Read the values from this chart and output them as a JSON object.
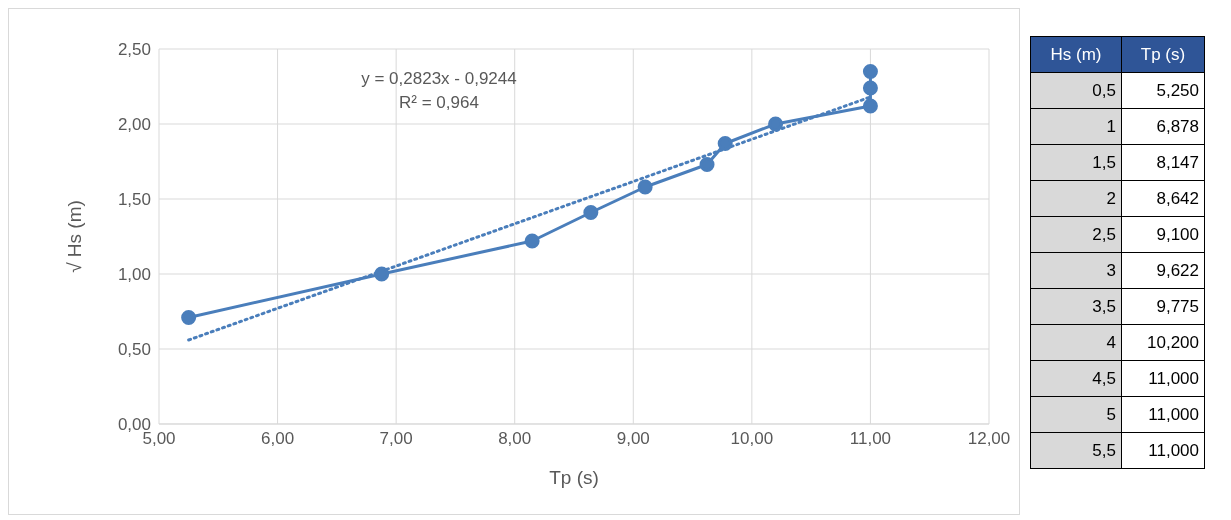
{
  "chart_data": {
    "type": "line",
    "xlabel": "Tp (s)",
    "ylabel": "√ Hs (m)",
    "annotations": [
      "y = 0,2823x - 0,9244",
      "R² = 0,964",
      "Hs (m)",
      "Tp (s)",
      "0,5",
      "5,250",
      "1",
      "6,878",
      "1,5",
      "8,147",
      "2",
      "8,642",
      "2,5",
      "9,100",
      "3",
      "9,622",
      "3,5",
      "9,775",
      "4",
      "10,200",
      "4,5",
      "11,000",
      "5",
      "11,000",
      "5,5",
      "11,000"
    ],
    "xlim": [
      5,
      12
    ],
    "xticks": [
      {
        "value": 5,
        "label": "5,00"
      },
      {
        "value": 6,
        "label": "6,00"
      },
      {
        "value": 7,
        "label": "7,00"
      },
      {
        "value": 8,
        "label": "8,00"
      },
      {
        "value": 9,
        "label": "9,00"
      },
      {
        "value": 10,
        "label": "10,00"
      },
      {
        "value": 11,
        "label": "11,00"
      },
      {
        "value": 12,
        "label": "12,00"
      }
    ],
    "ylim": [
      0,
      2.5
    ],
    "yticks": [
      {
        "value": 0,
        "label": "0,00"
      },
      {
        "value": 0.5,
        "label": "0,50"
      },
      {
        "value": 1,
        "label": "1,00"
      },
      {
        "value": 1.5,
        "label": "1,50"
      },
      {
        "value": 2,
        "label": "2,00"
      },
      {
        "value": 2.5,
        "label": "2,50"
      }
    ],
    "grid": true,
    "series": [
      {
        "type": "line",
        "color": "#4a7ebb",
        "marker": "circle",
        "line_style": "solid",
        "x": [
          5.25,
          6.878,
          8.147,
          8.642,
          9.1,
          9.622,
          9.775,
          10.2,
          11,
          11,
          11
        ],
        "values": [
          0.71,
          1.0,
          1.22,
          1.41,
          1.58,
          1.73,
          1.87,
          2.0,
          2.12,
          2.24,
          2.35
        ]
      },
      {
        "type": "line",
        "color": "#4a7ebb",
        "marker": "none",
        "line_style": "dotted",
        "x": [
          5.25,
          11
        ],
        "values": [
          0.56,
          2.18
        ]
      }
    ]
  }
}
